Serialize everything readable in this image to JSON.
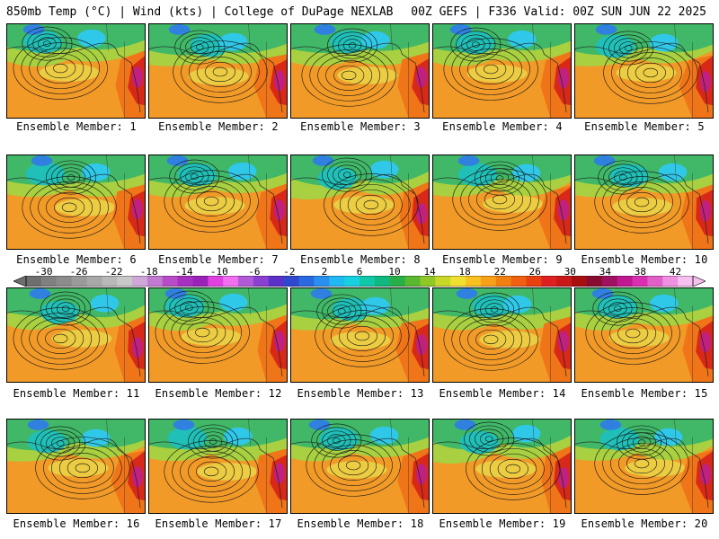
{
  "header": {
    "left": "850mb Temp (°C) | Wind (kts) | College of DuPage NEXLAB",
    "right": "00Z GEFS | F336 Valid: 00Z SUN JUN 22 2025"
  },
  "panel_label_prefix": "Ensemble Member: ",
  "members": [
    {
      "label": "Ensemble Member: 1"
    },
    {
      "label": "Ensemble Member: 2"
    },
    {
      "label": "Ensemble Member: 3"
    },
    {
      "label": "Ensemble Member: 4"
    },
    {
      "label": "Ensemble Member: 5"
    },
    {
      "label": "Ensemble Member: 6"
    },
    {
      "label": "Ensemble Member: 7"
    },
    {
      "label": "Ensemble Member: 8"
    },
    {
      "label": "Ensemble Member: 9"
    },
    {
      "label": "Ensemble Member: 10"
    },
    {
      "label": "Ensemble Member: 11"
    },
    {
      "label": "Ensemble Member: 12"
    },
    {
      "label": "Ensemble Member: 13"
    },
    {
      "label": "Ensemble Member: 14"
    },
    {
      "label": "Ensemble Member: 15"
    },
    {
      "label": "Ensemble Member: 16"
    },
    {
      "label": "Ensemble Member: 17"
    },
    {
      "label": "Ensemble Member: 18"
    },
    {
      "label": "Ensemble Member: 19"
    },
    {
      "label": "Ensemble Member: 20"
    }
  ],
  "colorbar": {
    "tick_labels": [
      "-30",
      "-26",
      "-22",
      "-18",
      "-14",
      "-10",
      "-6",
      "-2",
      "2",
      "6",
      "10",
      "14",
      "18",
      "22",
      "26",
      "30",
      "34",
      "38",
      "42"
    ],
    "min": -32,
    "max": 44,
    "step": 2,
    "colors": [
      "#6e6e6e",
      "#808080",
      "#8c8c8c",
      "#9a9a9a",
      "#a8a8a8",
      "#b8b8b8",
      "#c8c8c8",
      "#cfa8d8",
      "#c27ad0",
      "#b84cc8",
      "#a830c0",
      "#9a22b8",
      "#e040e0",
      "#f070f0",
      "#b05ad8",
      "#8a40d0",
      "#5a30c8",
      "#3048d0",
      "#2a6ae0",
      "#2a90f0",
      "#20b8f0",
      "#18d0e0",
      "#10c8a8",
      "#10b880",
      "#28b048",
      "#58b830",
      "#90c828",
      "#c8d828",
      "#f0e030",
      "#f8c020",
      "#f8a018",
      "#f08010",
      "#f06010",
      "#e84010",
      "#e02020",
      "#c81818",
      "#a81010",
      "#880c30",
      "#a01060",
      "#c01890",
      "#d830b0",
      "#e060c8",
      "#f090e0",
      "#f8c0f0"
    ]
  },
  "field_colors": {
    "warm": "#f29a28",
    "hot": "#f07418",
    "red": "#d82818",
    "magenta": "#c02080",
    "yellow": "#e8d848",
    "lightgreen": "#a8d040",
    "green": "#40b868",
    "teal": "#20c0b8",
    "cyan": "#30c8e8",
    "blue": "#3080e0"
  }
}
